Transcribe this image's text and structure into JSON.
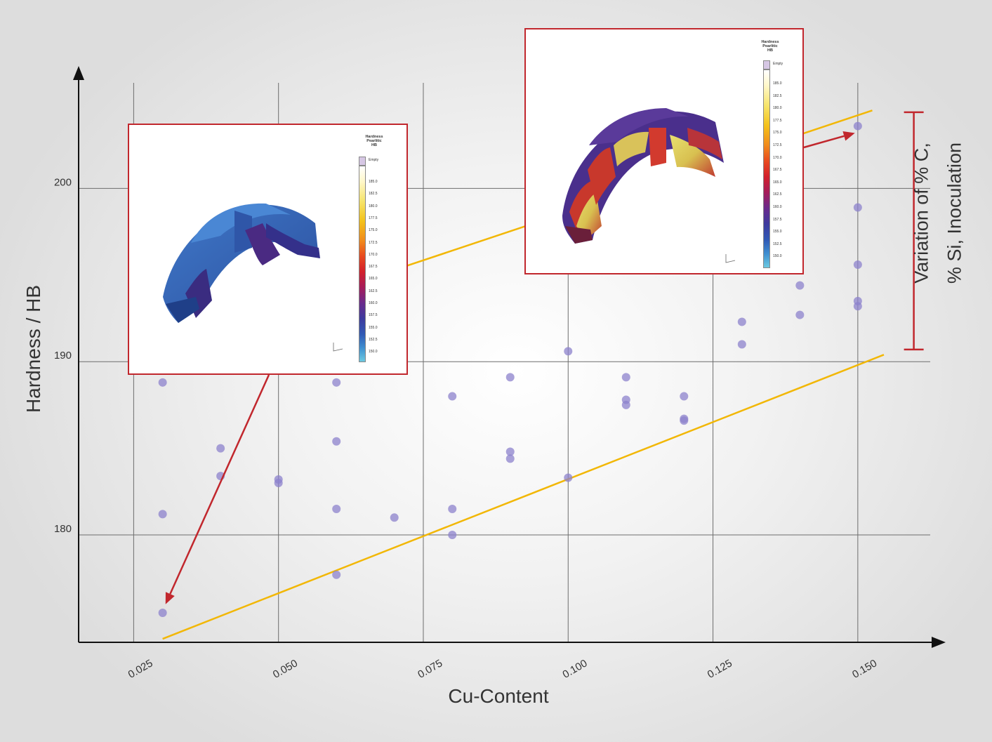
{
  "chart_data": {
    "type": "scatter",
    "title": "",
    "xlabel": "Cu-Content",
    "ylabel": "Hardness / HB",
    "xlim": [
      0.0155,
      0.1625
    ],
    "ylim": [
      173.8,
      206.5
    ],
    "x_ticks": [
      "0.025",
      "0.050",
      "0.075",
      "0.100",
      "0.125",
      "0.150"
    ],
    "x_tick_values": [
      0.025,
      0.05,
      0.075,
      0.1,
      0.125,
      0.15
    ],
    "y_ticks": [
      "180",
      "190",
      "200"
    ],
    "y_tick_values": [
      180,
      190,
      200
    ],
    "grid": true,
    "point_color": "#8c82cc",
    "points": [
      {
        "x": 0.03,
        "y": 175.5
      },
      {
        "x": 0.03,
        "y": 181.2
      },
      {
        "x": 0.03,
        "y": 188.8
      },
      {
        "x": 0.04,
        "y": 183.4
      },
      {
        "x": 0.04,
        "y": 185.0
      },
      {
        "x": 0.05,
        "y": 183.0
      },
      {
        "x": 0.05,
        "y": 183.2
      },
      {
        "x": 0.06,
        "y": 177.7
      },
      {
        "x": 0.06,
        "y": 181.5
      },
      {
        "x": 0.06,
        "y": 185.4
      },
      {
        "x": 0.06,
        "y": 188.8
      },
      {
        "x": 0.07,
        "y": 181.0
      },
      {
        "x": 0.08,
        "y": 180.0
      },
      {
        "x": 0.08,
        "y": 181.5
      },
      {
        "x": 0.08,
        "y": 188.0
      },
      {
        "x": 0.09,
        "y": 184.4
      },
      {
        "x": 0.09,
        "y": 184.8
      },
      {
        "x": 0.09,
        "y": 189.1
      },
      {
        "x": 0.1,
        "y": 183.3
      },
      {
        "x": 0.1,
        "y": 190.6
      },
      {
        "x": 0.11,
        "y": 187.5
      },
      {
        "x": 0.11,
        "y": 187.8
      },
      {
        "x": 0.11,
        "y": 189.1
      },
      {
        "x": 0.12,
        "y": 186.6
      },
      {
        "x": 0.12,
        "y": 186.7
      },
      {
        "x": 0.12,
        "y": 188.0
      },
      {
        "x": 0.13,
        "y": 191.0
      },
      {
        "x": 0.13,
        "y": 192.3
      },
      {
        "x": 0.14,
        "y": 192.7
      },
      {
        "x": 0.14,
        "y": 194.4
      },
      {
        "x": 0.15,
        "y": 193.2
      },
      {
        "x": 0.15,
        "y": 193.5
      },
      {
        "x": 0.15,
        "y": 195.6
      },
      {
        "x": 0.15,
        "y": 198.9
      },
      {
        "x": 0.15,
        "y": 203.6
      }
    ],
    "bounds": {
      "color": "#f2b705",
      "upper": [
        [
          0.145,
          204.2
        ],
        [
          0.1525,
          204.5
        ]
      ],
      "upper_visible": [
        [
          0.0575,
          193.9
        ],
        [
          0.1525,
          204.5
        ]
      ],
      "lower": [
        [
          0.03,
          174.0
        ],
        [
          0.1545,
          190.4
        ]
      ]
    },
    "range_marker": {
      "label_lines": [
        "Variation of % C,",
        "% Si, Inoculation"
      ],
      "y_top": 204.4,
      "y_bottom": 190.7,
      "x": 0.153,
      "color": "#c1272d"
    },
    "insets": [
      {
        "id": "low",
        "legend_title": [
          "Hardness",
          "Pearlitic",
          "HB"
        ],
        "legend_values": [
          "Empty",
          "185.0",
          "182.5",
          "180.0",
          "177.5",
          "175.0",
          "172.5",
          "170.0",
          "167.5",
          "165.0",
          "162.5",
          "160.0",
          "157.5",
          "155.0",
          "152.5",
          "150.0"
        ],
        "arrow_to": {
          "x": 0.0305,
          "y": 176.0
        }
      },
      {
        "id": "high",
        "legend_title": [
          "Hardness",
          "Pearlitic",
          "HB"
        ],
        "legend_values": [
          "Empty",
          "185.0",
          "182.5",
          "180.0",
          "177.5",
          "175.0",
          "172.5",
          "170.0",
          "167.5",
          "165.0",
          "162.5",
          "160.0",
          "157.5",
          "155.0",
          "152.5",
          "150.0"
        ],
        "arrow_to": {
          "x": 0.1495,
          "y": 203.2
        }
      }
    ]
  },
  "axis_glyphs": {
    "z": "z",
    "x": "x"
  }
}
